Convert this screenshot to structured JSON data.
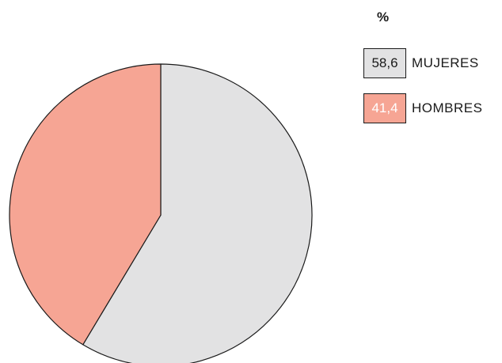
{
  "chart_data": {
    "type": "pie",
    "legend_title": "%",
    "legend_position": "top-right",
    "slices": [
      {
        "label": "MUJERES",
        "value": 58.6,
        "value_label": "58,6",
        "color": "#e2e2e3",
        "text_color": "#1a1a1a"
      },
      {
        "label": "HOMBRES",
        "value": 41.4,
        "value_label": "41,4",
        "color": "#f6a594",
        "text_color": "#ffffff"
      }
    ]
  }
}
